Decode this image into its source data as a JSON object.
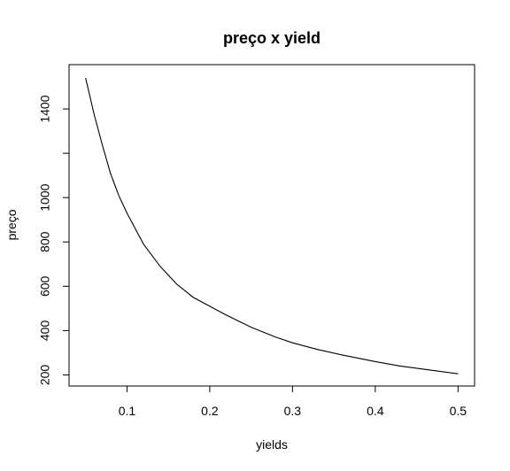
{
  "chart_data": {
    "type": "line",
    "title": "preço x yield",
    "xlabel": "yields",
    "ylabel": "preço",
    "xlim": [
      0.03,
      0.52
    ],
    "ylim": [
      150,
      1600
    ],
    "grid": false,
    "x_ticks": [
      0.1,
      0.2,
      0.3,
      0.4,
      0.5
    ],
    "x_tick_labels": [
      "0.1",
      "0.2",
      "0.3",
      "0.4",
      "0.5"
    ],
    "y_ticks": [
      200,
      400,
      600,
      800,
      1000,
      1200,
      1400
    ],
    "y_tick_labels": [
      "200",
      "400",
      "600",
      "800",
      "1000",
      "",
      "1400"
    ],
    "series": [
      {
        "name": "preço",
        "x": [
          0.05,
          0.06,
          0.07,
          0.08,
          0.09,
          0.1,
          0.12,
          0.14,
          0.16,
          0.18,
          0.2,
          0.22,
          0.25,
          0.28,
          0.3,
          0.33,
          0.36,
          0.4,
          0.43,
          0.46,
          0.5
        ],
        "y": [
          1540,
          1380,
          1240,
          1110,
          1010,
          930,
          790,
          690,
          610,
          550,
          510,
          470,
          415,
          370,
          345,
          315,
          290,
          260,
          240,
          225,
          205
        ]
      }
    ]
  }
}
